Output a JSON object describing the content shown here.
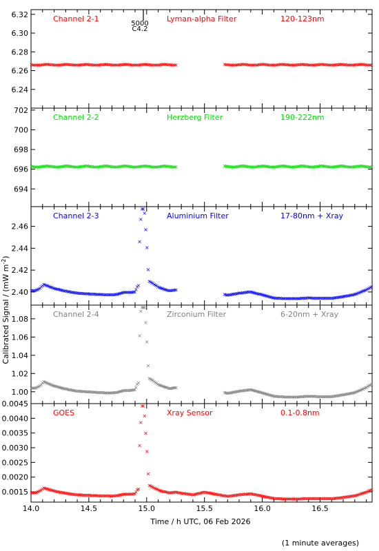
{
  "page": {
    "ylabel": "Calibrated Signal / (mW m",
    "ylabel_sup": "-2",
    "ylabel_end": ")",
    "xlabel": "Time / h UTC, 06 Feb 2026",
    "footnote": "(1 minute averages)",
    "marker_top": "5000",
    "marker_bottom": "C4.2"
  },
  "chart_data": [
    {
      "type": "scatter",
      "channel": "Channel 2-1",
      "filter": "Lyman-alpha Filter",
      "band": "120-123nm",
      "color": "#ff0000",
      "ylim": [
        6.22,
        6.325
      ],
      "yticks": [
        "6.24",
        "6.26",
        "6.28",
        "6.30",
        "6.32"
      ],
      "xlim": [
        14.0,
        16.95
      ],
      "profile": {
        "base": 6.2665,
        "peak": 0.0,
        "amp": 0.0004
      },
      "gap": [
        15.26,
        15.67
      ]
    },
    {
      "type": "scatter",
      "channel": "Channel 2-2",
      "filter": "Herzberg Filter",
      "band": "190-222nm",
      "color": "#00e000",
      "ylim": [
        692.2,
        702.2
      ],
      "yticks": [
        "694",
        "696",
        "698",
        "700",
        "702"
      ],
      "xlim": [
        14.0,
        16.95
      ],
      "profile": {
        "base": 696.3,
        "peak": 0.0,
        "amp": 0.05
      },
      "gap": [
        15.26,
        15.67
      ]
    },
    {
      "type": "scatter",
      "channel": "Channel 2-3",
      "filter": "Aluminium Filter",
      "band": "17-80nm + Xray",
      "color": "#0000ff",
      "ylim": [
        2.388,
        2.478
      ],
      "yticks": [
        "2.40",
        "2.42",
        "2.44",
        "2.46"
      ],
      "xlim": [
        14.0,
        16.95
      ],
      "profile": {
        "base": 2.393,
        "peak": 0.073,
        "amp": 0.031
      },
      "gap": [
        15.26,
        15.67
      ]
    },
    {
      "type": "scatter",
      "channel": "Channel 2-4",
      "filter": "Zirconium Filter",
      "band": "6-20nm + Xray",
      "color": "#808080",
      "ylim": [
        0.987,
        1.095
      ],
      "yticks": [
        "1.00",
        "1.02",
        "1.04",
        "1.06",
        "1.08"
      ],
      "xlim": [
        14.0,
        16.95
      ],
      "profile": {
        "base": 0.993,
        "peak": 0.095,
        "amp": 0.04
      },
      "gap": [
        15.26,
        15.67
      ]
    },
    {
      "type": "scatter",
      "channel": "GOES",
      "filter": "Xray Sensor",
      "band": "0.1-0.8nm",
      "color": "#ff0000",
      "ylim": [
        0.00115,
        0.0045
      ],
      "yticks": [
        "0.0015",
        "0.0020",
        "0.0025",
        "0.0030",
        "0.0035",
        "0.0040",
        "0.0045"
      ],
      "xlim": [
        14.0,
        16.95
      ],
      "xticks": [
        "14.0",
        "14.5",
        "15.0",
        "15.5",
        "16.0",
        "16.5"
      ],
      "profile": {
        "base": 0.00123,
        "peak": 0.00307,
        "amp": 0.0009
      },
      "gap": null
    }
  ]
}
